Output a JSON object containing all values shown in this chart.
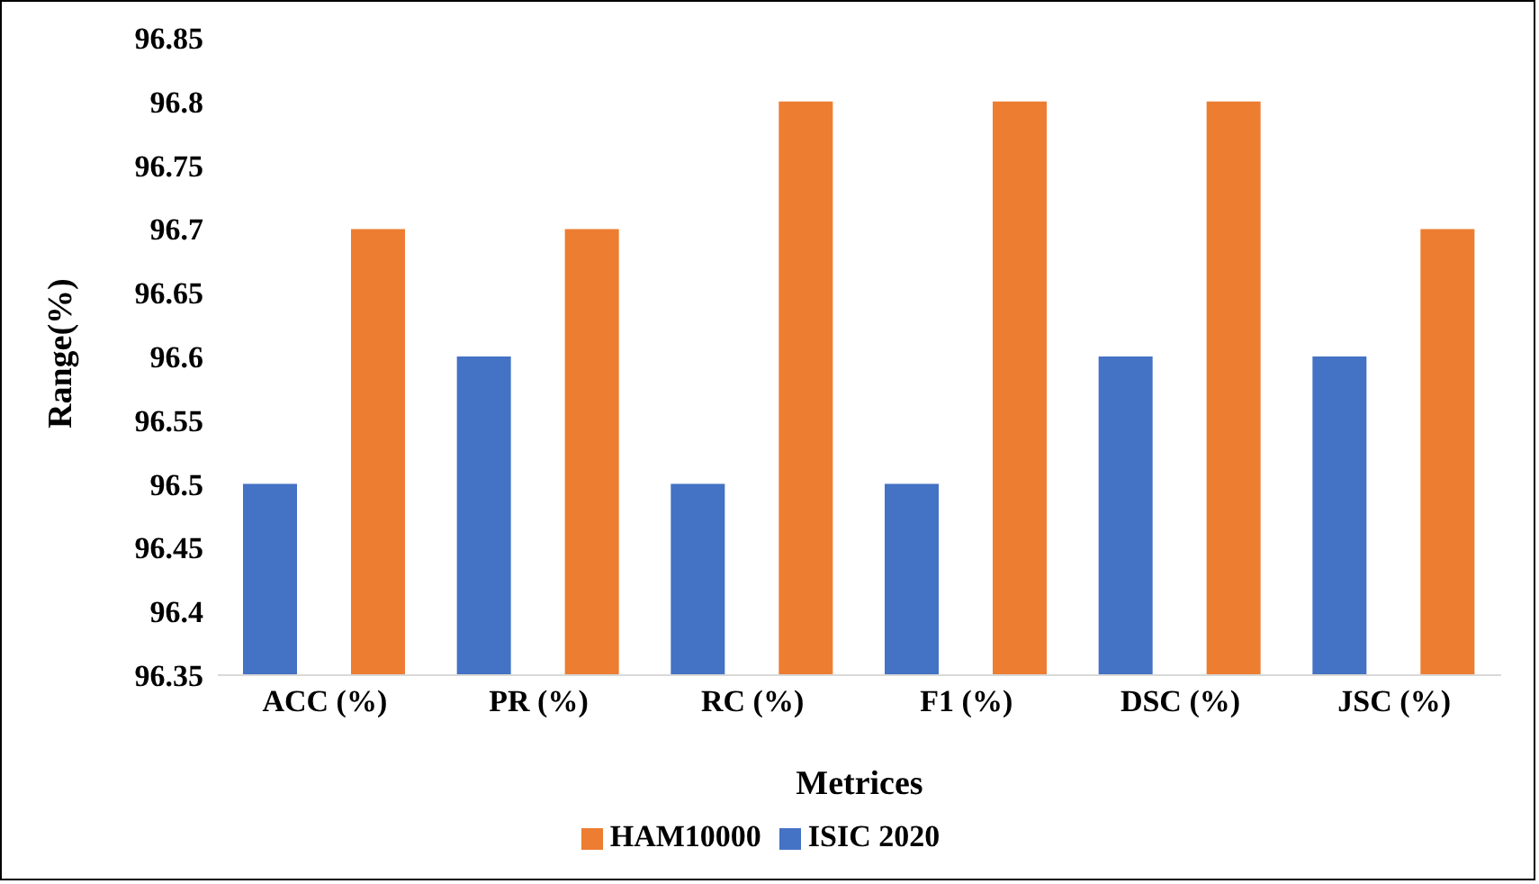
{
  "chart_data": {
    "type": "bar",
    "xlabel": "Metrices",
    "ylabel": "Range(%)",
    "categories": [
      "ACC (%)",
      "PR (%)",
      "RC (%)",
      "F1 (%)",
      "DSC (%)",
      "JSC (%)"
    ],
    "series": [
      {
        "name": "ISIC 2020",
        "color": "#4472c4",
        "values": [
          96.5,
          96.6,
          96.5,
          96.5,
          96.6,
          96.6
        ]
      },
      {
        "name": "HAM10000",
        "color": "#ed7d31",
        "values": [
          96.7,
          96.7,
          96.8,
          96.8,
          96.8,
          96.7
        ]
      }
    ],
    "ylim": [
      96.35,
      96.85
    ],
    "yticks": [
      96.35,
      96.4,
      96.45,
      96.5,
      96.55,
      96.6,
      96.65,
      96.7,
      96.75,
      96.8,
      96.85
    ],
    "grid": false,
    "legend": "bottom"
  }
}
